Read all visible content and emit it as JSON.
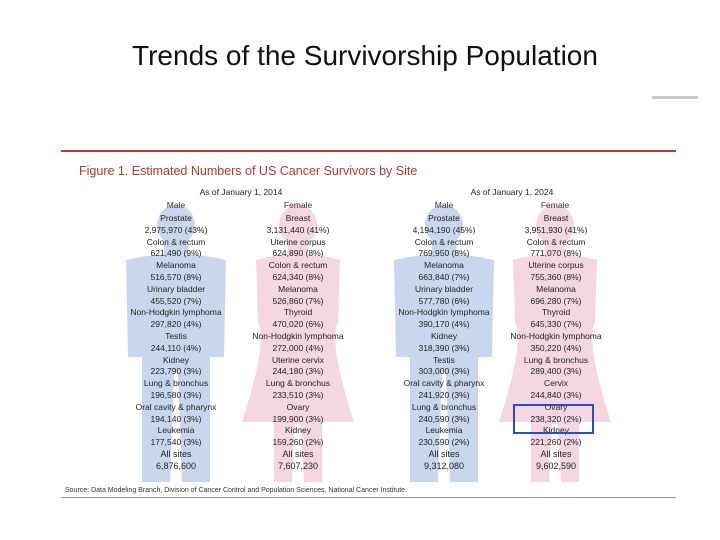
{
  "slide": {
    "title": "Trends of the Survivorship Population"
  },
  "figure": {
    "title": "Figure 1. Estimated Numbers of US Cancer Survivors by Site",
    "source": "Source: Data Modeling Branch, Division of Cancer Control and Population Sciences, National Cancer Institute.",
    "colors": {
      "male": "#c9d7ee",
      "female": "#f5d7e2",
      "title": "#b03a2e",
      "highlight": "#2450c4"
    },
    "years": [
      {
        "label": "As of January 1, 2014",
        "columns": [
          {
            "header": "Male",
            "entries": [
              {
                "site": "Prostate",
                "value": "2,975,970 (43%)"
              },
              {
                "site": "Colon & rectum",
                "value": "621,490 (9%)"
              },
              {
                "site": "Melanoma",
                "value": "516,570 (8%)"
              },
              {
                "site": "Urinary bladder",
                "value": "455,520 (7%)"
              },
              {
                "site": "Non-Hodgkin lymphoma",
                "value": "297,820 (4%)"
              },
              {
                "site": "Testis",
                "value": "244,110 (4%)"
              },
              {
                "site": "Kidney",
                "value": "223,790 (3%)"
              },
              {
                "site": "Lung & bronchus",
                "value": "196,580 (3%)"
              },
              {
                "site": "Oral cavity & pharynx",
                "value": "194,140 (3%)"
              },
              {
                "site": "Leukemia",
                "value": "177,540 (3%)"
              },
              {
                "site": "All sites",
                "value": "6,876,600"
              }
            ]
          },
          {
            "header": "Female",
            "entries": [
              {
                "site": "Breast",
                "value": "3,131,440 (41%)"
              },
              {
                "site": "Uterine corpus",
                "value": "624,890 (8%)"
              },
              {
                "site": "Colon & rectum",
                "value": "624,340 (8%)"
              },
              {
                "site": "Melanoma",
                "value": "526,860 (7%)"
              },
              {
                "site": "Thyroid",
                "value": "470,020 (6%)"
              },
              {
                "site": "Non-Hodgkin lymphoma",
                "value": "272,000 (4%)"
              },
              {
                "site": "Uterine cervix",
                "value": "244,180 (3%)"
              },
              {
                "site": "Lung & bronchus",
                "value": "233,510 (3%)"
              },
              {
                "site": "Ovary",
                "value": "199,900 (3%)"
              },
              {
                "site": "Kidney",
                "value": "159,260 (2%)"
              },
              {
                "site": "All sites",
                "value": "7,607,230"
              }
            ]
          }
        ]
      },
      {
        "label": "As of January 1, 2024",
        "columns": [
          {
            "header": "Male",
            "entries": [
              {
                "site": "Prostate",
                "value": "4,194,190 (45%)"
              },
              {
                "site": "Colon & rectum",
                "value": "769,950 (8%)"
              },
              {
                "site": "Melanoma",
                "value": "663,840 (7%)"
              },
              {
                "site": "Urinary bladder",
                "value": "577,780 (6%)"
              },
              {
                "site": "Non-Hodgkin lymphoma",
                "value": "390,170 (4%)"
              },
              {
                "site": "Kidney",
                "value": "318,390 (3%)"
              },
              {
                "site": "Testis",
                "value": "303,000 (3%)"
              },
              {
                "site": "Oral cavity & pharynx",
                "value": "241,920 (3%)"
              },
              {
                "site": "Lung & bronchus",
                "value": "240,590 (3%)"
              },
              {
                "site": "Leukemia",
                "value": "230,590 (2%)"
              },
              {
                "site": "All sites",
                "value": "9,312,080"
              }
            ]
          },
          {
            "header": "Female",
            "entries": [
              {
                "site": "Breast",
                "value": "3,951,930 (41%)"
              },
              {
                "site": "Colon & rectum",
                "value": "771,070 (8%)"
              },
              {
                "site": "Uterine corpus",
                "value": "755,360 (8%)"
              },
              {
                "site": "Melanoma",
                "value": "696,280 (7%)"
              },
              {
                "site": "Thyroid",
                "value": "645,330 (7%)"
              },
              {
                "site": "Non-Hodgkin lymphoma",
                "value": "350,220 (4%)"
              },
              {
                "site": "Lung & bronchus",
                "value": "289,400 (3%)"
              },
              {
                "site": "Cervix",
                "value": "244,840 (3%)"
              },
              {
                "site": "Ovary",
                "value": "238,320 (2%)"
              },
              {
                "site": "Kidney",
                "value": "221,260 (2%)"
              },
              {
                "site": "All sites",
                "value": "9,602,590"
              }
            ]
          }
        ]
      }
    ]
  }
}
